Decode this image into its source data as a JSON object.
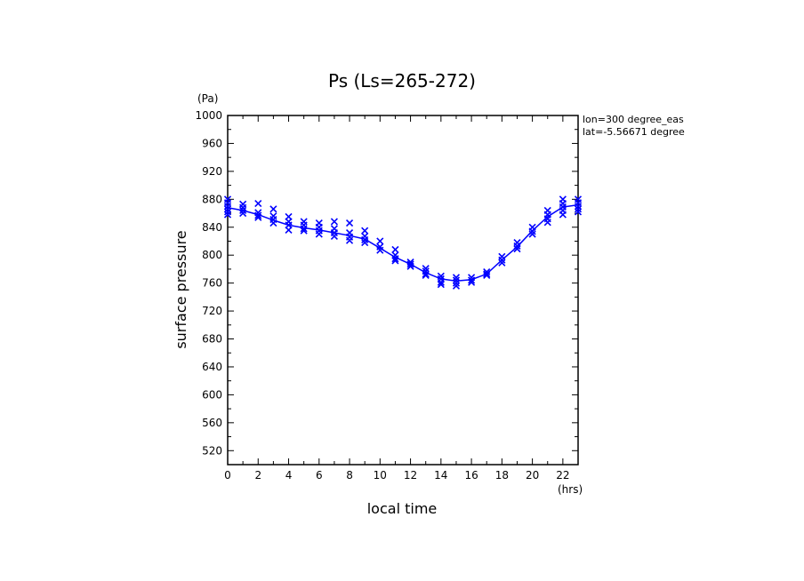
{
  "chart_data": {
    "type": "scatter",
    "title": "Ps (Ls=265-272)",
    "xlabel": "local time",
    "ylabel": "surface pressure",
    "xunit": "(hrs)",
    "yunit": "(Pa)",
    "annotations": [
      "lon=300 degree_eas",
      "lat=-5.56671 degree"
    ],
    "xlim": [
      0,
      23
    ],
    "ylim": [
      500,
      1000
    ],
    "xticks": [
      0,
      2,
      4,
      6,
      8,
      10,
      12,
      14,
      16,
      18,
      20,
      22
    ],
    "yticks": [
      520,
      560,
      600,
      640,
      680,
      720,
      760,
      800,
      840,
      880,
      920,
      960,
      1000
    ],
    "grid": false,
    "colors": {
      "series": "#0000ff",
      "axes": "#000000"
    },
    "series": [
      {
        "kind": "line",
        "x": [
          0,
          1,
          2,
          3,
          4,
          5,
          6,
          7,
          8,
          9,
          10,
          11,
          12,
          13,
          14,
          15,
          16,
          17,
          18,
          19,
          20,
          21,
          22,
          23
        ],
        "values": [
          868,
          864,
          858,
          850,
          843,
          839,
          836,
          832,
          828,
          823,
          810,
          797,
          787,
          775,
          766,
          763,
          765,
          773,
          793,
          812,
          835,
          855,
          869,
          872
        ]
      },
      {
        "kind": "scatter",
        "marker": "x",
        "points": [
          [
            0,
            880
          ],
          [
            0,
            875
          ],
          [
            0,
            870
          ],
          [
            0,
            866
          ],
          [
            0,
            862
          ],
          [
            0,
            858
          ],
          [
            1,
            873
          ],
          [
            1,
            868
          ],
          [
            1,
            864
          ],
          [
            1,
            860
          ],
          [
            2,
            874
          ],
          [
            2,
            861
          ],
          [
            2,
            857
          ],
          [
            2,
            854
          ],
          [
            3,
            866
          ],
          [
            3,
            856
          ],
          [
            3,
            851
          ],
          [
            3,
            846
          ],
          [
            4,
            855
          ],
          [
            4,
            848
          ],
          [
            4,
            843
          ],
          [
            4,
            836
          ],
          [
            5,
            848
          ],
          [
            5,
            843
          ],
          [
            5,
            838
          ],
          [
            5,
            835
          ],
          [
            6,
            846
          ],
          [
            6,
            840
          ],
          [
            6,
            835
          ],
          [
            6,
            830
          ],
          [
            7,
            848
          ],
          [
            7,
            838
          ],
          [
            7,
            832
          ],
          [
            7,
            827
          ],
          [
            8,
            846
          ],
          [
            8,
            832
          ],
          [
            8,
            826
          ],
          [
            8,
            821
          ],
          [
            9,
            835
          ],
          [
            9,
            827
          ],
          [
            9,
            822
          ],
          [
            9,
            818
          ],
          [
            10,
            820
          ],
          [
            10,
            812
          ],
          [
            10,
            807
          ],
          [
            11,
            808
          ],
          [
            11,
            800
          ],
          [
            11,
            795
          ],
          [
            11,
            792
          ],
          [
            12,
            790
          ],
          [
            12,
            787
          ],
          [
            12,
            784
          ],
          [
            13,
            781
          ],
          [
            13,
            777
          ],
          [
            13,
            773
          ],
          [
            13,
            771
          ],
          [
            14,
            770
          ],
          [
            14,
            766
          ],
          [
            14,
            761
          ],
          [
            14,
            758
          ],
          [
            15,
            768
          ],
          [
            15,
            764
          ],
          [
            15,
            760
          ],
          [
            15,
            756
          ],
          [
            16,
            768
          ],
          [
            16,
            764
          ],
          [
            16,
            761
          ],
          [
            17,
            776
          ],
          [
            17,
            773
          ],
          [
            17,
            771
          ],
          [
            18,
            798
          ],
          [
            18,
            793
          ],
          [
            18,
            789
          ],
          [
            19,
            818
          ],
          [
            19,
            813
          ],
          [
            19,
            809
          ],
          [
            20,
            840
          ],
          [
            20,
            834
          ],
          [
            20,
            830
          ],
          [
            21,
            864
          ],
          [
            21,
            858
          ],
          [
            21,
            852
          ],
          [
            21,
            847
          ],
          [
            22,
            880
          ],
          [
            22,
            874
          ],
          [
            22,
            869
          ],
          [
            22,
            864
          ],
          [
            22,
            858
          ],
          [
            23,
            880
          ],
          [
            23,
            875
          ],
          [
            23,
            870
          ],
          [
            23,
            866
          ],
          [
            23,
            862
          ]
        ]
      }
    ]
  }
}
